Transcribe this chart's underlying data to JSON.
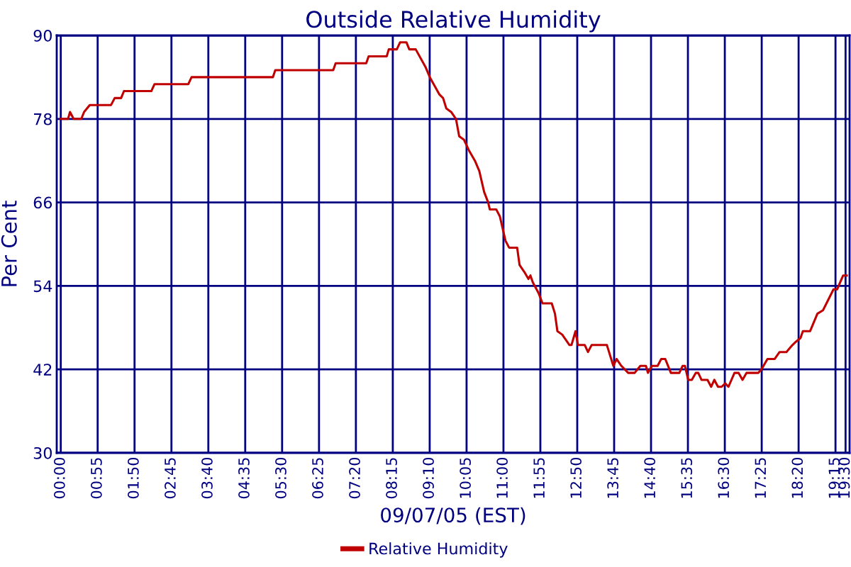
{
  "chart_data": {
    "type": "line",
    "title": "Outside Relative Humidity",
    "xlabel": "09/07/05 (EST)",
    "ylabel": "Per Cent",
    "series": [
      {
        "name": "Relative Humidity",
        "color": "#c00000",
        "x": [
          0,
          0.18,
          0.23,
          0.32,
          0.51,
          0.58,
          0.72,
          1.25,
          1.34,
          1.5,
          1.57,
          2.25,
          2.33,
          3.17,
          3.25,
          5.27,
          5.33,
          6.77,
          6.83,
          7.59,
          7.65,
          8.1,
          8.15,
          8.35,
          8.43,
          8.59,
          8.66,
          8.82,
          9.06,
          9.17,
          9.41,
          9.5,
          9.58,
          9.7,
          9.82,
          9.9,
          10.02,
          10.14,
          10.29,
          10.4,
          10.52,
          10.62,
          10.66,
          10.82,
          10.91,
          10.99,
          11.05,
          11.14,
          11.34,
          11.4,
          11.52,
          11.62,
          11.67,
          11.73,
          11.87,
          11.97,
          12.2,
          12.28,
          12.34,
          12.46,
          12.64,
          12.69,
          12.79,
          12.85,
          13.02,
          13.1,
          13.19,
          13.57,
          13.73,
          13.81,
          13.93,
          14.1,
          14.26,
          14.4,
          14.54,
          14.59,
          14.69,
          14.83,
          14.92,
          15.02,
          15.16,
          15.37,
          15.45,
          15.51,
          15.59,
          15.68,
          15.78,
          15.84,
          15.92,
          16.07,
          16.16,
          16.24,
          16.33,
          16.42,
          16.51,
          16.59,
          16.74,
          16.84,
          16.94,
          17.04,
          17.33,
          17.41,
          17.56,
          17.74,
          17.86,
          18.03,
          18.18,
          18.27,
          18.38,
          18.44,
          18.62,
          18.8,
          18.94,
          19.2,
          19.29,
          19.44,
          19.53
        ],
        "values": [
          78,
          78,
          79,
          78,
          78,
          79,
          80,
          80,
          81,
          81,
          82,
          82,
          83,
          83,
          84,
          84,
          85,
          85,
          86,
          86,
          87,
          87,
          88,
          88,
          89,
          89,
          88,
          88,
          85.5,
          84,
          81.5,
          81,
          79.5,
          79,
          78,
          75.5,
          75,
          73.5,
          72,
          70.5,
          67.5,
          66,
          65,
          65,
          64,
          62,
          60.5,
          59.5,
          59.5,
          57,
          56,
          55,
          55.5,
          54.5,
          53,
          51.5,
          51.5,
          50,
          47.5,
          47,
          45.5,
          45.5,
          47.5,
          45.5,
          45.5,
          44.5,
          45.5,
          45.5,
          42.5,
          43.5,
          42.5,
          41.5,
          41.5,
          42.5,
          42.5,
          41.5,
          42.5,
          42.5,
          43.5,
          43.5,
          41.5,
          41.5,
          42.5,
          42.5,
          40.5,
          40.5,
          41.5,
          41.5,
          40.5,
          40.5,
          39.5,
          40.5,
          39.5,
          39.5,
          40,
          39.5,
          41.5,
          41.5,
          40.5,
          41.5,
          41.5,
          42,
          43.5,
          43.5,
          44.5,
          44.5,
          45.5,
          46,
          46.5,
          47.5,
          47.5,
          50,
          50.5,
          53.5,
          53.5,
          55.5,
          55.5
        ]
      }
    ],
    "xlim": [
      -0.1,
      19.6
    ],
    "xticks": [
      {
        "value": 0,
        "label": "00:00"
      },
      {
        "value": 0.9167,
        "label": "00:55"
      },
      {
        "value": 1.8333,
        "label": "01:50"
      },
      {
        "value": 2.75,
        "label": "02:45"
      },
      {
        "value": 3.6667,
        "label": "03:40"
      },
      {
        "value": 4.5833,
        "label": "04:35"
      },
      {
        "value": 5.5,
        "label": "05:30"
      },
      {
        "value": 6.4167,
        "label": "06:25"
      },
      {
        "value": 7.3333,
        "label": "07:20"
      },
      {
        "value": 8.25,
        "label": "08:15"
      },
      {
        "value": 9.1667,
        "label": "09:10"
      },
      {
        "value": 10.0833,
        "label": "10:05"
      },
      {
        "value": 11,
        "label": "11:00"
      },
      {
        "value": 11.9167,
        "label": "11:55"
      },
      {
        "value": 12.8333,
        "label": "12:50"
      },
      {
        "value": 13.75,
        "label": "13:45"
      },
      {
        "value": 14.6667,
        "label": "14:40"
      },
      {
        "value": 15.5833,
        "label": "15:35"
      },
      {
        "value": 16.5,
        "label": "16:30"
      },
      {
        "value": 17.4167,
        "label": "17:25"
      },
      {
        "value": 18.3333,
        "label": "18:20"
      },
      {
        "value": 19.25,
        "label": "19:15"
      },
      {
        "value": 19.5,
        "label": "19:30"
      }
    ],
    "ylim": [
      30,
      90
    ],
    "yticks": [
      30,
      42,
      54,
      66,
      78,
      90
    ],
    "grid": true,
    "legend": "bottom",
    "marker": "none",
    "line_style": "solid"
  }
}
